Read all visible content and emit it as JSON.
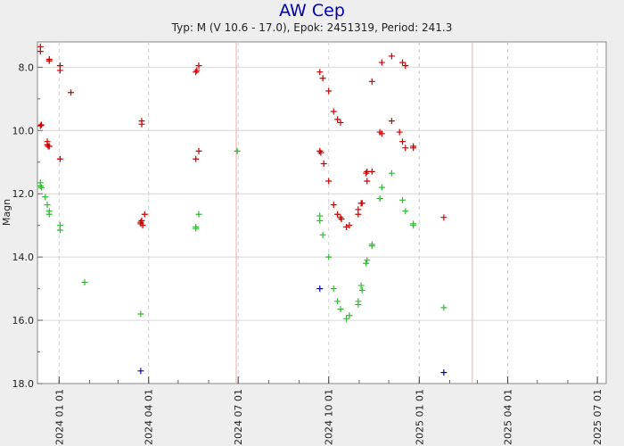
{
  "chart_data": {
    "type": "scatter",
    "title": "AW Cep",
    "subtitle": "Typ: M (V 10.6 - 17.0), Epok: 2451319, Period: 241.3",
    "ylabel": "Magn",
    "xlabel": "",
    "y_inverted": true,
    "ylim": [
      18.0,
      7.2
    ],
    "xlim": [
      "2023-12-10",
      "2025-07-10"
    ],
    "grid": true,
    "legend": "none",
    "x_tick_labels": [
      "2024 01 01",
      "2024 04 01",
      "2024 07 01",
      "2024 10 01",
      "2025 01 01",
      "2025 04 01",
      "2025 07 01"
    ],
    "y_tick_labels": [
      "8.0",
      "10.0",
      "12.0",
      "14.0",
      "16.0",
      "18.0"
    ],
    "reference_lines": [
      "2024-06-29",
      "2025-02-24"
    ],
    "colors": {
      "red": "#CC0000",
      "green": "#33BB33",
      "blue": "#0000CC",
      "reference_line": "#E6B0A8"
    },
    "series": [
      {
        "color": "red",
        "points": [
          [
            "2023-12-13",
            7.35
          ],
          [
            "2023-12-13",
            7.5
          ],
          [
            "2023-12-13",
            9.85
          ],
          [
            "2023-12-14",
            9.82
          ],
          [
            "2023-12-20",
            10.35
          ],
          [
            "2023-12-20",
            10.45
          ],
          [
            "2023-12-21",
            10.5
          ],
          [
            "2023-12-22",
            7.75
          ],
          [
            "2023-12-22",
            7.8
          ],
          [
            "2023-12-22",
            10.5
          ],
          [
            "2024-01-02",
            7.95
          ],
          [
            "2024-01-02",
            8.1
          ],
          [
            "2024-01-02",
            10.9
          ],
          [
            "2024-01-13",
            8.8
          ],
          [
            "2024-03-25",
            9.7
          ],
          [
            "2024-03-25",
            9.8
          ],
          [
            "2024-03-24",
            12.9
          ],
          [
            "2024-03-24",
            12.95
          ],
          [
            "2024-03-25",
            12.85
          ],
          [
            "2024-03-26",
            13.0
          ],
          [
            "2024-03-28",
            12.65
          ],
          [
            "2024-05-19",
            8.15
          ],
          [
            "2024-05-20",
            8.1
          ],
          [
            "2024-05-19",
            10.9
          ],
          [
            "2024-05-22",
            10.65
          ],
          [
            "2024-05-22",
            7.95
          ],
          [
            "2024-09-22",
            8.15
          ],
          [
            "2024-09-22",
            10.65
          ],
          [
            "2024-09-23",
            10.7
          ],
          [
            "2024-09-25",
            8.35
          ],
          [
            "2024-09-26",
            11.05
          ],
          [
            "2024-10-01",
            8.75
          ],
          [
            "2024-10-01",
            11.6
          ],
          [
            "2024-10-06",
            9.4
          ],
          [
            "2024-10-06",
            12.35
          ],
          [
            "2024-10-10",
            9.65
          ],
          [
            "2024-10-10",
            12.65
          ],
          [
            "2024-10-13",
            9.75
          ],
          [
            "2024-10-13",
            12.75
          ],
          [
            "2024-10-14",
            12.8
          ],
          [
            "2024-10-19",
            13.05
          ],
          [
            "2024-10-22",
            13.0
          ],
          [
            "2024-10-31",
            12.65
          ],
          [
            "2024-10-31",
            12.5
          ],
          [
            "2024-11-03",
            12.3
          ],
          [
            "2024-11-04",
            12.3
          ],
          [
            "2024-11-08",
            11.35
          ],
          [
            "2024-11-09",
            11.3
          ],
          [
            "2024-11-09",
            11.6
          ],
          [
            "2024-11-14",
            8.45
          ],
          [
            "2024-11-14",
            11.3
          ],
          [
            "2024-11-22",
            10.05
          ],
          [
            "2024-11-24",
            10.1
          ],
          [
            "2024-11-24",
            7.85
          ],
          [
            "2024-12-04",
            7.65
          ],
          [
            "2024-12-04",
            9.7
          ],
          [
            "2024-12-12",
            10.05
          ],
          [
            "2024-12-15",
            10.35
          ],
          [
            "2024-12-15",
            7.85
          ],
          [
            "2024-12-18",
            10.55
          ],
          [
            "2024-12-18",
            7.95
          ],
          [
            "2024-12-26",
            10.5
          ],
          [
            "2024-12-26",
            10.55
          ],
          [
            "2025-01-26",
            12.75
          ]
        ]
      },
      {
        "color": "green",
        "points": [
          [
            "2023-12-13",
            11.65
          ],
          [
            "2023-12-13",
            11.75
          ],
          [
            "2023-12-14",
            11.8
          ],
          [
            "2023-12-18",
            12.1
          ],
          [
            "2023-12-20",
            12.35
          ],
          [
            "2023-12-22",
            12.55
          ],
          [
            "2023-12-22",
            12.65
          ],
          [
            "2024-01-02",
            13.0
          ],
          [
            "2024-01-02",
            13.15
          ],
          [
            "2024-01-27",
            14.8
          ],
          [
            "2024-03-24",
            15.8
          ],
          [
            "2024-05-19",
            13.05
          ],
          [
            "2024-05-19",
            13.1
          ],
          [
            "2024-05-22",
            12.65
          ],
          [
            "2024-06-30",
            10.65
          ],
          [
            "2024-09-22",
            12.7
          ],
          [
            "2024-09-22",
            12.85
          ],
          [
            "2024-09-25",
            13.3
          ],
          [
            "2024-10-01",
            14.0
          ],
          [
            "2024-10-06",
            15.0
          ],
          [
            "2024-10-10",
            15.4
          ],
          [
            "2024-10-13",
            15.65
          ],
          [
            "2024-10-19",
            15.95
          ],
          [
            "2024-10-22",
            15.85
          ],
          [
            "2024-10-31",
            15.4
          ],
          [
            "2024-10-31",
            15.5
          ],
          [
            "2024-11-03",
            14.9
          ],
          [
            "2024-11-04",
            15.05
          ],
          [
            "2024-11-08",
            14.2
          ],
          [
            "2024-11-09",
            14.1
          ],
          [
            "2024-11-14",
            13.65
          ],
          [
            "2024-11-14",
            13.6
          ],
          [
            "2024-11-22",
            12.15
          ],
          [
            "2024-11-24",
            11.8
          ],
          [
            "2024-12-04",
            11.35
          ],
          [
            "2024-12-15",
            12.2
          ],
          [
            "2024-12-18",
            12.55
          ],
          [
            "2024-12-26",
            12.95
          ],
          [
            "2024-12-26",
            13.0
          ],
          [
            "2025-01-26",
            15.6
          ]
        ]
      },
      {
        "color": "blue",
        "points": [
          [
            "2024-03-24",
            17.6
          ],
          [
            "2024-09-22",
            15.0
          ],
          [
            "2025-01-26",
            17.65
          ]
        ]
      }
    ]
  }
}
